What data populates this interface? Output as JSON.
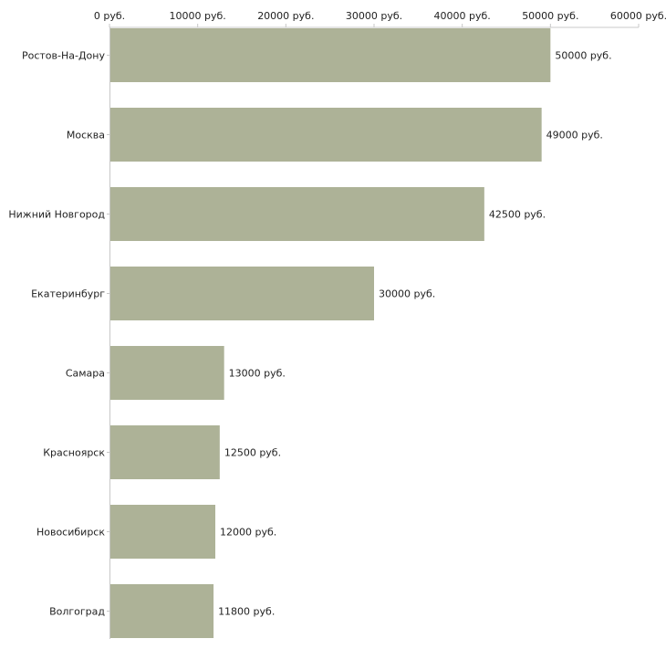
{
  "chart_data": {
    "type": "bar",
    "orientation": "horizontal",
    "title": "",
    "xlabel": "",
    "ylabel": "",
    "unit": "руб.",
    "xlim": [
      0,
      60000
    ],
    "ticks": [
      {
        "value": 0,
        "label": "0 руб."
      },
      {
        "value": 10000,
        "label": "10000 руб."
      },
      {
        "value": 20000,
        "label": "20000 руб."
      },
      {
        "value": 30000,
        "label": "30000 руб."
      },
      {
        "value": 40000,
        "label": "40000 руб."
      },
      {
        "value": 50000,
        "label": "50000 руб."
      },
      {
        "value": 60000,
        "label": "60000 руб."
      }
    ],
    "axis_position": "top",
    "grid": false,
    "bar_color": "#adb297",
    "axis_color": "#c8c8c8",
    "categories": [
      "Ростов-На-Дону",
      "Москва",
      "Нижний Новгород",
      "Екатеринбург",
      "Самара",
      "Красноярск",
      "Новосибирск",
      "Волгоград"
    ],
    "values": [
      50000,
      49000,
      42500,
      30000,
      13000,
      12500,
      12000,
      11800
    ],
    "value_labels": [
      "50000 руб.",
      "49000 руб.",
      "42500 руб.",
      "30000 руб.",
      "13000 руб.",
      "12500 руб.",
      "12000 руб.",
      "11800 руб."
    ]
  }
}
